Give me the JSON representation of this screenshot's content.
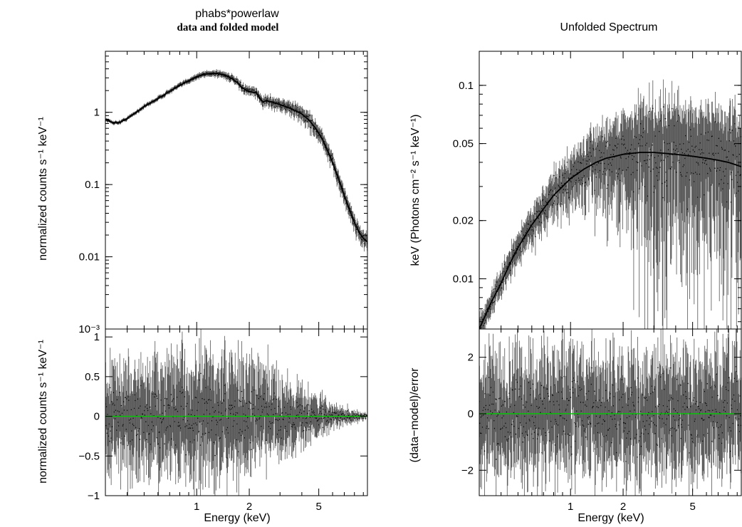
{
  "figure": {
    "left_title": "phabs*powerlaw",
    "left_subtitle": "data and folded model",
    "right_title": "Unfolded Spectrum"
  },
  "chart_data": [
    {
      "type": "scatter",
      "title": "phabs*powerlaw",
      "subtitle": "data and folded model",
      "xlabel": "",
      "ylabel": "normalized counts s⁻¹ keV⁻¹",
      "xscale": "log",
      "yscale": "log",
      "xlim": [
        0.3,
        9.5
      ],
      "ylim": [
        0.001,
        7
      ],
      "xticks": [
        1,
        2,
        5
      ],
      "yticks": [
        {
          "v": 0.001,
          "t": "10⁻³"
        },
        {
          "v": 0.01,
          "t": "0.01"
        },
        {
          "v": 0.1,
          "t": "0.1"
        },
        {
          "v": 1,
          "t": "1"
        }
      ],
      "grid": false,
      "series": [
        {
          "role": "model",
          "x": [
            0.3,
            0.33,
            0.36,
            0.4,
            0.45,
            0.5,
            0.6,
            0.7,
            0.8,
            0.9,
            1.0,
            1.1,
            1.2,
            1.3,
            1.4,
            1.5,
            1.6,
            1.7,
            1.8,
            1.9,
            2.0,
            2.1,
            2.2,
            2.3,
            2.4,
            2.5,
            2.6,
            2.8,
            3.0,
            3.3,
            3.6,
            4.0,
            4.4,
            4.8,
            5.2,
            5.6,
            6.0,
            6.5,
            7.0,
            7.5,
            8.0,
            8.5,
            9.0,
            9.5
          ],
          "y": [
            0.8,
            0.72,
            0.72,
            0.82,
            1.0,
            1.2,
            1.55,
            1.95,
            2.35,
            2.75,
            3.1,
            3.35,
            3.45,
            3.45,
            3.35,
            3.15,
            2.9,
            2.6,
            2.25,
            2.05,
            1.95,
            1.9,
            1.85,
            1.55,
            1.4,
            1.45,
            1.42,
            1.35,
            1.28,
            1.18,
            1.08,
            0.95,
            0.78,
            0.6,
            0.44,
            0.3,
            0.2,
            0.12,
            0.07,
            0.045,
            0.03,
            0.022,
            0.018,
            0.016
          ]
        }
      ]
    },
    {
      "type": "scatter",
      "xlabel": "Energy (keV)",
      "ylabel": "normalized counts s⁻¹ keV⁻¹",
      "xscale": "log",
      "yscale": "linear",
      "xlim": [
        0.3,
        9.5
      ],
      "ylim": [
        -1,
        1.1
      ],
      "xticks": [
        1,
        2,
        5
      ],
      "yticks": [
        {
          "v": -1,
          "t": "−1"
        },
        {
          "v": -0.5,
          "t": "−0.5"
        },
        {
          "v": 0,
          "t": "0"
        },
        {
          "v": 0.5,
          "t": "0.5"
        },
        {
          "v": 1,
          "t": "1"
        }
      ],
      "reference_line": {
        "y": 0,
        "color": "#00cc00"
      },
      "residual_envelope": {
        "x": [
          0.3,
          1,
          2,
          4,
          6,
          9.5
        ],
        "amplitude": [
          0.4,
          0.5,
          0.45,
          0.25,
          0.1,
          0.02
        ]
      }
    },
    {
      "type": "scatter",
      "title": "Unfolded Spectrum",
      "xlabel": "",
      "ylabel": "keV (Photons cm⁻² s⁻¹ keV⁻¹)",
      "xscale": "log",
      "yscale": "log",
      "xlim": [
        0.3,
        9.5
      ],
      "ylim": [
        0.0055,
        0.15
      ],
      "xticks": [
        1,
        2,
        5
      ],
      "yticks": [
        {
          "v": 0.01,
          "t": "0.01"
        },
        {
          "v": 0.02,
          "t": "0.02"
        },
        {
          "v": 0.05,
          "t": "0.05"
        },
        {
          "v": 0.1,
          "t": "0.1"
        }
      ],
      "grid": false,
      "series": [
        {
          "role": "model",
          "x": [
            0.3,
            0.35,
            0.4,
            0.45,
            0.5,
            0.6,
            0.7,
            0.8,
            0.9,
            1.0,
            1.2,
            1.4,
            1.6,
            1.8,
            2.0,
            2.5,
            3.0,
            4.0,
            5.0,
            6.0,
            7.0,
            8.0,
            9.5
          ],
          "y": [
            0.0055,
            0.0075,
            0.0095,
            0.012,
            0.0145,
            0.019,
            0.023,
            0.027,
            0.03,
            0.033,
            0.037,
            0.04,
            0.042,
            0.043,
            0.044,
            0.045,
            0.045,
            0.044,
            0.043,
            0.042,
            0.041,
            0.04,
            0.038
          ]
        }
      ]
    },
    {
      "type": "scatter",
      "xlabel": "Energy (keV)",
      "ylabel": "(data−model)/error",
      "xscale": "log",
      "yscale": "linear",
      "xlim": [
        0.3,
        9.5
      ],
      "ylim": [
        -2.9,
        3.0
      ],
      "xticks": [
        1,
        2,
        5
      ],
      "yticks": [
        {
          "v": -2,
          "t": "−2"
        },
        {
          "v": 0,
          "t": "0"
        },
        {
          "v": 2,
          "t": "2"
        }
      ],
      "reference_line": {
        "y": 0,
        "color": "#00cc00"
      },
      "residual_envelope": {
        "x": [
          0.3,
          9.5
        ],
        "amplitude": [
          1.4,
          1.4
        ]
      }
    }
  ]
}
